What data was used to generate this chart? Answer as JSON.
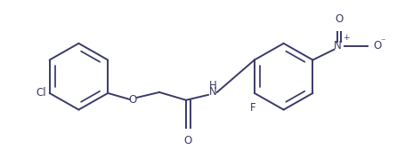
{
  "background_color": "#ffffff",
  "line_color": "#3a3a6a",
  "text_color": "#3a3a6a",
  "line_width": 1.4,
  "font_size": 8.5,
  "figsize": [
    4.46,
    1.69
  ],
  "dpi": 100,
  "xlim": [
    0,
    446
  ],
  "ylim": [
    0,
    169
  ]
}
